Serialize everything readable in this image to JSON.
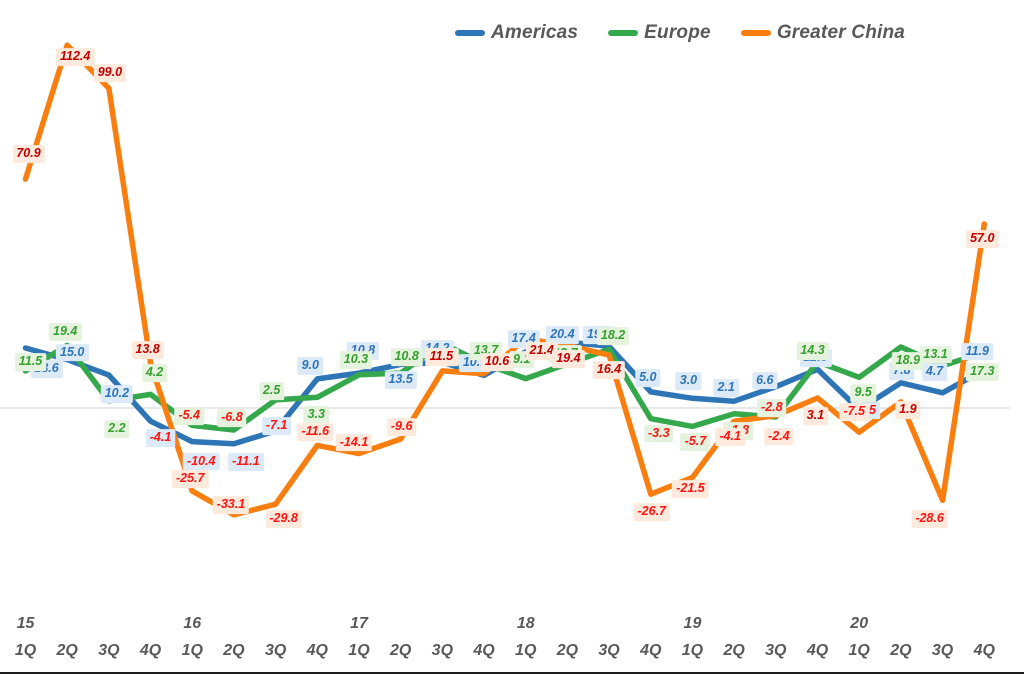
{
  "chart_data": {
    "type": "line",
    "title": "",
    "x_quarters": [
      "1Q",
      "2Q",
      "3Q",
      "4Q",
      "1Q",
      "2Q",
      "3Q",
      "4Q",
      "1Q",
      "2Q",
      "3Q",
      "4Q",
      "1Q",
      "2Q",
      "3Q",
      "4Q",
      "1Q",
      "2Q",
      "3Q",
      "4Q",
      "1Q",
      "2Q",
      "3Q",
      "4Q"
    ],
    "x_years": [
      "15",
      "16",
      "17",
      "18",
      "19",
      "20"
    ],
    "year_at_quarter_index": [
      0,
      4,
      8,
      12,
      16,
      20
    ],
    "ylim": [
      -40,
      120
    ],
    "grid": "zero-line-only",
    "legend_position": "top-center",
    "value_decimals": 1,
    "series": [
      {
        "name": "Americas",
        "color": "#2E75B6",
        "label_bg": "#DCE9F6",
        "label_text_color": "#2E75B6",
        "values": [
          18.6,
          15.0,
          10.2,
          -4.1,
          -10.4,
          -11.1,
          -7.1,
          9.0,
          10.8,
          13.5,
          14.2,
          10.1,
          17.4,
          20.4,
          19.1,
          5.0,
          3.0,
          2.1,
          6.6,
          12.0,
          -0.5,
          7.8,
          4.7,
          11.9
        ]
      },
      {
        "name": "Europe",
        "color": "#35A84C",
        "label_bg": "#E5F2DD",
        "label_text_color": "#35A02F",
        "values": [
          11.5,
          19.4,
          2.2,
          4.2,
          -5.4,
          -6.8,
          2.5,
          3.3,
          10.3,
          10.8,
          20.0,
          13.7,
          9.1,
          13.7,
          18.2,
          -3.3,
          -5.7,
          -1.8,
          -2.8,
          14.3,
          9.5,
          18.9,
          13.1,
          17.3
        ]
      },
      {
        "name": "Greater China",
        "color": "#F87E10",
        "label_bg": "#FDEADC",
        "label_text_color": "#C00000",
        "values": [
          70.9,
          112.4,
          99.0,
          13.8,
          -25.7,
          -33.1,
          -29.8,
          -11.6,
          -14.1,
          -9.6,
          11.5,
          10.6,
          21.4,
          19.4,
          16.4,
          -26.7,
          -21.5,
          -4.1,
          -2.4,
          3.1,
          -7.5,
          1.9,
          -28.6,
          57.0
        ]
      }
    ],
    "negative_label_color": "#FF1414",
    "zero_line_color": "#D9D9D9",
    "axis_text_color": "#595959"
  }
}
